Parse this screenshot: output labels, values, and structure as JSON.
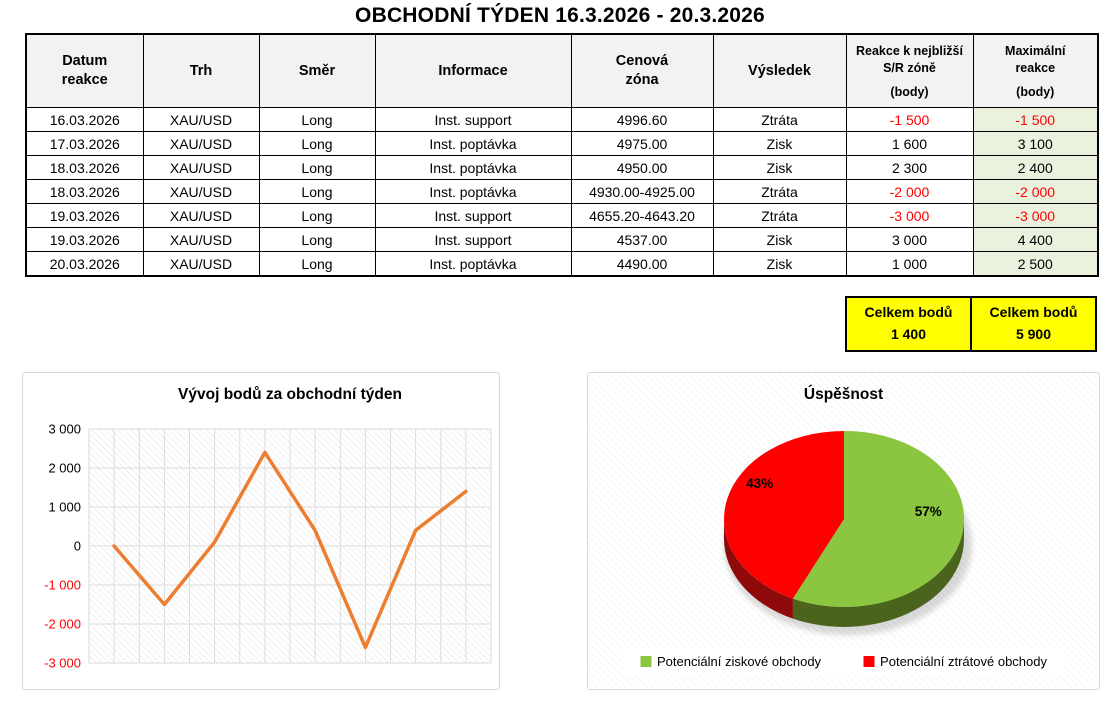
{
  "title": "OBCHODNÍ TÝDEN 16.3.2026 - 20.3.2026",
  "table": {
    "headers": [
      {
        "label": "Datum\nreakce"
      },
      {
        "label": "Trh"
      },
      {
        "label": "Směr"
      },
      {
        "label": "Informace"
      },
      {
        "label": "Cenová\nzóna"
      },
      {
        "label": "Výsledek"
      },
      {
        "label": "Reakce k nejbližší\nS/R zóně",
        "sub": "(body)",
        "small": true
      },
      {
        "label": "Maximální\nreakce",
        "sub": "(body)",
        "small": true
      }
    ],
    "rows": [
      [
        "16.03.2026",
        "XAU/USD",
        "Long",
        "Inst. support",
        "4996.60",
        "Ztráta",
        "-1 500",
        "-1 500"
      ],
      [
        "17.03.2026",
        "XAU/USD",
        "Long",
        "Inst. poptávka",
        "4975.00",
        "Zisk",
        "1 600",
        "3 100"
      ],
      [
        "18.03.2026",
        "XAU/USD",
        "Long",
        "Inst. poptávka",
        "4950.00",
        "Zisk",
        "2 300",
        "2 400"
      ],
      [
        "18.03.2026",
        "XAU/USD",
        "Long",
        "Inst. poptávka",
        "4930.00-4925.00",
        "Ztráta",
        "-2 000",
        "-2 000"
      ],
      [
        "19.03.2026",
        "XAU/USD",
        "Long",
        "Inst. support",
        "4655.20-4643.20",
        "Ztráta",
        "-3 000",
        "-3 000"
      ],
      [
        "19.03.2026",
        "XAU/USD",
        "Long",
        "Inst. support",
        "4537.00",
        "Zisk",
        "3 000",
        "4 400"
      ],
      [
        "20.03.2026",
        "XAU/USD",
        "Long",
        "Inst. poptávka",
        "4490.00",
        "Zisk",
        "1 000",
        "2 500"
      ]
    ]
  },
  "summary": {
    "left": {
      "label": "Celkem bodů",
      "value": "1 400"
    },
    "right": {
      "label": "Celkem bodů",
      "value": "5 900"
    }
  },
  "chart_data": [
    {
      "type": "line",
      "title": "Vývoj bodů za obchodní týden",
      "values": [
        0,
        -1500,
        100,
        2400,
        400,
        -2600,
        400,
        1400
      ],
      "ylim": [
        -3000,
        3000
      ],
      "ytick_step": 1000,
      "ytick_labels": [
        "3 000",
        "2 000",
        "1 000",
        "0",
        "-1 000",
        "-2 000",
        "-3 000"
      ],
      "grid": true,
      "line_color": "#ED7D31",
      "negative_label_color": "#FF0000",
      "legend_position": "none"
    },
    {
      "type": "pie",
      "title": "Úspěšnost",
      "style": "3d",
      "slices": [
        {
          "label": "Potenciální ziskové obchody",
          "value": 57,
          "pct_label": "57%",
          "color": "#8CC540",
          "side_color": "#4A641E"
        },
        {
          "label": "Potenciální ztrátové obchody",
          "value": 43,
          "pct_label": "43%",
          "color": "#FE0000",
          "side_color": "#8F0A0A"
        }
      ],
      "legend_position": "bottom"
    }
  ],
  "colors": {
    "header_bg": "#F2F2F2",
    "max_col_bg": "#EAF1DD",
    "totals_bg": "#FFFF00",
    "negative_text": "#FF0000",
    "line_accent": "#ED7D31",
    "pie_green": "#8CC540",
    "pie_red": "#FE0000",
    "table_border": "#000000"
  }
}
